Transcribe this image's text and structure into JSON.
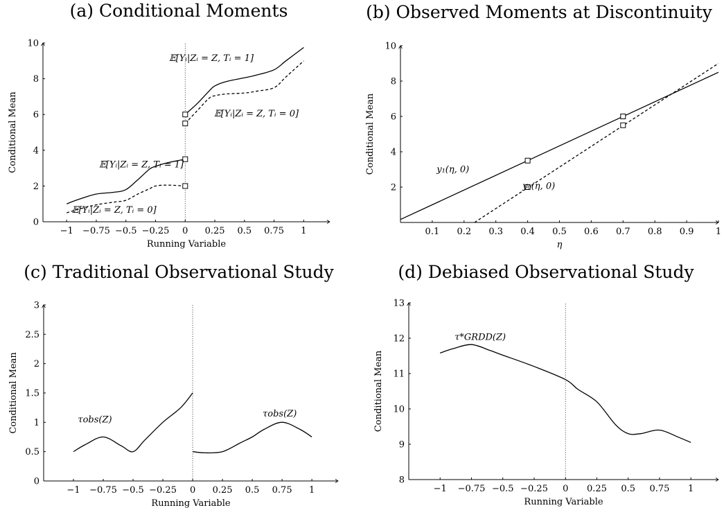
{
  "chart_data": [
    {
      "id": "a",
      "type": "line",
      "title": "(a) Conditional Moments",
      "xlabel": "Running Variable",
      "ylabel": "Conditional Mean",
      "xlim": [
        -1.2,
        1.22
      ],
      "ylim": [
        0,
        10
      ],
      "xticks": [
        "-1",
        "-0.75",
        "-0.5",
        "-0.25",
        "0",
        "0.25",
        "0.5",
        "0.75",
        "1"
      ],
      "xtick_values": [
        -1,
        -0.75,
        -0.5,
        -0.25,
        0,
        0.25,
        0.5,
        0.75,
        1
      ],
      "yticks": [
        "0",
        "2",
        "4",
        "6",
        "8",
        "10"
      ],
      "ytick_values": [
        0,
        2,
        4,
        6,
        8,
        10
      ],
      "vline": 0,
      "series": [
        {
          "style": "solid",
          "label": "𝔼[Yᵢ|Zᵢ = Z, Tᵢ = 1]",
          "x": [
            -1,
            -0.9,
            -0.75,
            -0.6,
            -0.5,
            -0.4,
            -0.3,
            -0.25,
            -0.15,
            0
          ],
          "y": [
            1.0,
            1.25,
            1.55,
            1.65,
            1.8,
            2.35,
            2.95,
            3.1,
            3.3,
            3.5
          ]
        },
        {
          "style": "dashed",
          "label": "𝔼[Yᵢ|Zᵢ = Z, Tᵢ = 0]",
          "x": [
            -1,
            -0.9,
            -0.75,
            -0.6,
            -0.5,
            -0.4,
            -0.3,
            -0.25,
            -0.15,
            0
          ],
          "y": [
            0.5,
            0.7,
            0.95,
            1.1,
            1.2,
            1.55,
            1.85,
            2.0,
            2.05,
            2.0
          ]
        },
        {
          "style": "solid",
          "label": "𝔼[Yᵢ|Zᵢ = Z, Tᵢ = 1]",
          "x": [
            0,
            0.1,
            0.2,
            0.25,
            0.35,
            0.5,
            0.6,
            0.75,
            0.85,
            1
          ],
          "y": [
            6.0,
            6.6,
            7.3,
            7.6,
            7.85,
            8.05,
            8.2,
            8.5,
            9.0,
            9.75
          ]
        },
        {
          "style": "dashed",
          "label": "𝔼[Yᵢ|Zᵢ = Z, Tᵢ = 0]",
          "x": [
            0,
            0.1,
            0.2,
            0.25,
            0.35,
            0.5,
            0.6,
            0.75,
            0.85,
            1
          ],
          "y": [
            5.5,
            6.2,
            6.9,
            7.05,
            7.15,
            7.2,
            7.3,
            7.5,
            8.1,
            9.0
          ]
        }
      ],
      "markers": [
        {
          "x": 0,
          "y": 3.5
        },
        {
          "x": 0,
          "y": 2.0
        },
        {
          "x": 0,
          "y": 6.0
        },
        {
          "x": 0,
          "y": 5.5
        }
      ],
      "annotations": [
        {
          "text": "𝔼[Yᵢ|Zᵢ = Z, Tᵢ = 1]",
          "x": -0.37,
          "y": 3.05
        },
        {
          "text": "𝔼[Yᵢ|Zᵢ = Z, Tᵢ = 0]",
          "x": -0.6,
          "y": 0.5
        },
        {
          "text": "𝔼[Yᵢ|Zᵢ = Z, Tᵢ = 1]",
          "x": 0.22,
          "y": 9.0
        },
        {
          "text": "𝔼[Yᵢ|Zᵢ = Z, Tᵢ = 0]",
          "x": 0.6,
          "y": 5.9
        }
      ]
    },
    {
      "id": "b",
      "type": "line",
      "title": "(b) Observed Moments at Discontinuity",
      "xlabel": "η",
      "ylabel": "Conditional Mean",
      "xlim": [
        0,
        1
      ],
      "ylim": [
        0,
        10
      ],
      "xticks": [
        "0.1",
        "0.2",
        "0.3",
        "0.4",
        "0.5",
        "0.6",
        "0.7",
        "0.8",
        "0.9",
        "1"
      ],
      "xtick_values": [
        0.1,
        0.2,
        0.3,
        0.4,
        0.5,
        0.6,
        0.7,
        0.8,
        0.9,
        1
      ],
      "yticks": [
        "2",
        "4",
        "6",
        "8",
        "10"
      ],
      "ytick_values": [
        2,
        4,
        6,
        8,
        10
      ],
      "series": [
        {
          "style": "solid",
          "label": "y₁(η, 0)",
          "x": [
            0,
            1
          ],
          "y": [
            0.167,
            8.5
          ]
        },
        {
          "style": "dashed",
          "label": "y₀(η, 0)",
          "x": [
            0.233,
            1
          ],
          "y": [
            0,
            9.0
          ]
        }
      ],
      "markers": [
        {
          "x": 0.4,
          "y": 3.5
        },
        {
          "x": 0.4,
          "y": 2.0
        },
        {
          "x": 0.7,
          "y": 6.0
        },
        {
          "x": 0.7,
          "y": 5.5
        }
      ],
      "annotations": [
        {
          "text": "y₁(η, 0)",
          "x": 0.165,
          "y": 2.85
        },
        {
          "text": "y₀(η, 0)",
          "x": 0.435,
          "y": 1.9
        }
      ]
    },
    {
      "id": "c",
      "type": "line",
      "title": "(c) Traditional Observational Study",
      "xlabel": "Running Variable",
      "ylabel": "Conditional Mean",
      "xlim": [
        -1.25,
        1.22
      ],
      "ylim": [
        0,
        3
      ],
      "xticks": [
        "-1",
        "-0.75",
        "-0.5",
        "-0.25",
        "0",
        "0.25",
        "0.5",
        "0.75",
        "1"
      ],
      "xtick_values": [
        -1,
        -0.75,
        -0.5,
        -0.25,
        0,
        0.25,
        0.5,
        0.75,
        1
      ],
      "yticks": [
        "0",
        "0.5",
        "1",
        "1.5",
        "2",
        "2.5",
        "3"
      ],
      "ytick_values": [
        0,
        0.5,
        1,
        1.5,
        2,
        2.5,
        3
      ],
      "vline": 0,
      "series": [
        {
          "style": "solid",
          "label": "τobs(Z)",
          "x": [
            -1,
            -0.9,
            -0.75,
            -0.6,
            -0.5,
            -0.4,
            -0.25,
            -0.1,
            0
          ],
          "y": [
            0.5,
            0.62,
            0.75,
            0.6,
            0.5,
            0.7,
            1.0,
            1.25,
            1.5
          ]
        },
        {
          "style": "solid",
          "label": "τobs(Z)",
          "x": [
            0,
            0.1,
            0.25,
            0.4,
            0.5,
            0.6,
            0.75,
            0.9,
            1
          ],
          "y": [
            0.5,
            0.48,
            0.5,
            0.65,
            0.75,
            0.88,
            1.0,
            0.88,
            0.75
          ]
        }
      ],
      "annotations": [
        {
          "text": "τobs(Z)",
          "x": -0.82,
          "y": 1.0
        },
        {
          "text": "τobs(Z)",
          "x": 0.73,
          "y": 1.1
        }
      ]
    },
    {
      "id": "d",
      "type": "line",
      "title": "(d) Debiased Observational Study",
      "xlabel": "Running Variable",
      "ylabel": "Conditional Mean",
      "xlim": [
        -1.25,
        1.22
      ],
      "ylim": [
        8,
        13
      ],
      "xticks": [
        "-1",
        "-0.75",
        "-0.5",
        "-0.25",
        "0",
        "0.25",
        "0.5",
        "0.75",
        "1"
      ],
      "xtick_values": [
        -1,
        -0.75,
        -0.5,
        -0.25,
        0,
        0.25,
        0.5,
        0.75,
        1
      ],
      "yticks": [
        "8",
        "9",
        "10",
        "11",
        "12",
        "13"
      ],
      "ytick_values": [
        8,
        9,
        10,
        11,
        12,
        13
      ],
      "vline": 0,
      "series": [
        {
          "style": "solid",
          "label": "τ*GRDD(Z)",
          "x": [
            -1,
            -0.9,
            -0.75,
            -0.6,
            -0.5,
            -0.25,
            0,
            0.1,
            0.25,
            0.4,
            0.5,
            0.6,
            0.75,
            0.9,
            1
          ],
          "y": [
            11.58,
            11.7,
            11.82,
            11.65,
            11.52,
            11.2,
            10.83,
            10.55,
            10.2,
            9.55,
            9.3,
            9.3,
            9.4,
            9.2,
            9.05
          ]
        }
      ],
      "annotations": [
        {
          "text": "τ*GRDD(Z)",
          "x": -0.68,
          "y": 11.95
        }
      ]
    }
  ]
}
